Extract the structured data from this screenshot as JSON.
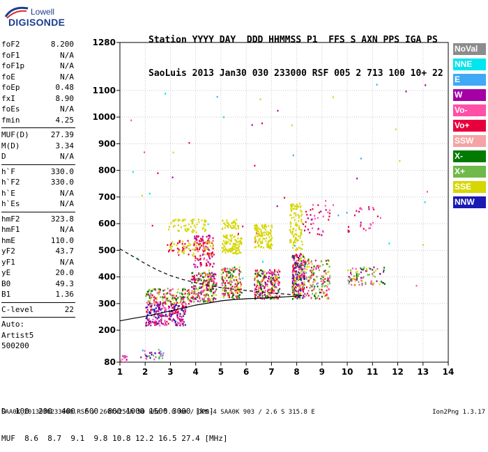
{
  "logo": {
    "line1": "Lowell",
    "line2": "DIGISONDE"
  },
  "header": {
    "row1": "Station YYYY DAY  DDD HHMMSS P1  FFS S AXN PPS IGA PS",
    "row2": "SaoLuis 2013 Jan30 030 233000 RSF 005 2 713 100 10+ 22"
  },
  "params": {
    "group1": [
      {
        "k": "foF2",
        "v": "8.200"
      },
      {
        "k": "foF1",
        "v": "N/A"
      },
      {
        "k": "foF1p",
        "v": "N/A"
      },
      {
        "k": "foE",
        "v": "N/A"
      },
      {
        "k": "foEp",
        "v": "0.48"
      },
      {
        "k": "fxI",
        "v": "8.90"
      },
      {
        "k": "foEs",
        "v": "N/A"
      },
      {
        "k": "fmin",
        "v": "4.25"
      }
    ],
    "group2": [
      {
        "k": "MUF(D)",
        "v": "27.39"
      },
      {
        "k": "M(D)",
        "v": "3.34"
      },
      {
        "k": "D",
        "v": "N/A"
      }
    ],
    "group3": [
      {
        "k": "h`F",
        "v": "330.0"
      },
      {
        "k": "h`F2",
        "v": "330.0"
      },
      {
        "k": "h`E",
        "v": "N/A"
      },
      {
        "k": "h`Es",
        "v": "N/A"
      }
    ],
    "group4": [
      {
        "k": "hmF2",
        "v": "323.8"
      },
      {
        "k": "hmF1",
        "v": "N/A"
      },
      {
        "k": "hmE",
        "v": "110.0"
      },
      {
        "k": "yF2",
        "v": "43.7"
      },
      {
        "k": "yF1",
        "v": "N/A"
      },
      {
        "k": "yE",
        "v": "20.0"
      },
      {
        "k": "B0",
        "v": "49.3"
      },
      {
        "k": "B1",
        "v": "1.36"
      }
    ],
    "clevel": {
      "k": "C-level",
      "v": "22"
    },
    "auto": [
      "Auto:",
      "Artist5",
      "500200"
    ]
  },
  "legend": [
    {
      "label": "NoVal",
      "color": "#8c8c8c"
    },
    {
      "label": "NNE",
      "color": "#00e5ee"
    },
    {
      "label": "E",
      "color": "#3fa9f5"
    },
    {
      "label": "W",
      "color": "#a400a4"
    },
    {
      "label": "Vo-",
      "color": "#ff4fa6"
    },
    {
      "label": "Vo+",
      "color": "#e8003d"
    },
    {
      "label": "SSW",
      "color": "#f5a3a3"
    },
    {
      "label": "X-",
      "color": "#007a00"
    },
    {
      "label": "X+",
      "color": "#6fb84a"
    },
    {
      "label": "SSE",
      "color": "#d6d600"
    },
    {
      "label": "NNW",
      "color": "#1a1ab5"
    }
  ],
  "chart_data": {
    "type": "scatter",
    "xlim": [
      1,
      14
    ],
    "ylim": [
      80,
      1280
    ],
    "xticks": [
      1,
      2,
      3,
      4,
      5,
      6,
      7,
      8,
      9,
      10,
      11,
      12,
      13,
      14
    ],
    "yticks": [
      80,
      200,
      300,
      400,
      500,
      600,
      700,
      800,
      900,
      1000,
      1100,
      1280
    ],
    "grid": true,
    "clusters": [
      {
        "fmin": 1.8,
        "fmax": 2.7,
        "hmin": 90,
        "hmax": 130,
        "n": 35,
        "colors": [
          "#3fa9f5",
          "#a400a4",
          "#6fb84a",
          "#ff4fa6",
          "#1a1ab5"
        ]
      },
      {
        "fmin": 1.0,
        "fmax": 1.3,
        "hmin": 80,
        "hmax": 110,
        "n": 10,
        "colors": [
          "#a400a4",
          "#ff4fa6"
        ]
      },
      {
        "fmin": 2.0,
        "fmax": 3.6,
        "hmin": 220,
        "hmax": 310,
        "n": 260,
        "colors": [
          "#a400a4",
          "#1a1ab5",
          "#ff4fa6",
          "#e8003d"
        ]
      },
      {
        "fmin": 2.0,
        "fmax": 3.8,
        "hmin": 300,
        "hmax": 360,
        "n": 150,
        "colors": [
          "#007a00",
          "#6fb84a",
          "#e8003d",
          "#ff4fa6",
          "#d6d600"
        ]
      },
      {
        "fmin": 3.8,
        "fmax": 4.8,
        "hmin": 310,
        "hmax": 420,
        "n": 240,
        "colors": [
          "#ff4fa6",
          "#a400a4",
          "#e8003d",
          "#d6d600",
          "#007a00",
          "#6fb84a"
        ]
      },
      {
        "fmin": 3.9,
        "fmax": 4.7,
        "hmin": 440,
        "hmax": 560,
        "n": 90,
        "colors": [
          "#a400a4",
          "#ff4fa6",
          "#e8003d"
        ]
      },
      {
        "fmin": 2.8,
        "fmax": 4.7,
        "hmin": 480,
        "hmax": 540,
        "n": 110,
        "colors": [
          "#d6d600",
          "#e8003d"
        ]
      },
      {
        "fmin": 2.9,
        "fmax": 4.4,
        "hmin": 570,
        "hmax": 620,
        "n": 60,
        "colors": [
          "#d6d600"
        ]
      },
      {
        "fmin": 5.0,
        "fmax": 5.8,
        "hmin": 320,
        "hmax": 440,
        "n": 170,
        "colors": [
          "#d6d600",
          "#007a00",
          "#ff4fa6",
          "#6fb84a",
          "#e8003d"
        ]
      },
      {
        "fmin": 5.0,
        "fmax": 5.8,
        "hmin": 490,
        "hmax": 560,
        "n": 110,
        "colors": [
          "#d6d600"
        ]
      },
      {
        "fmin": 5.0,
        "fmax": 5.7,
        "hmin": 580,
        "hmax": 620,
        "n": 40,
        "colors": [
          "#d6d600"
        ]
      },
      {
        "fmin": 6.3,
        "fmax": 7.3,
        "hmin": 320,
        "hmax": 430,
        "n": 240,
        "colors": [
          "#e8003d",
          "#ff4fa6",
          "#007a00",
          "#d6d600",
          "#a400a4"
        ]
      },
      {
        "fmin": 6.3,
        "fmax": 7.0,
        "hmin": 510,
        "hmax": 600,
        "n": 120,
        "colors": [
          "#d6d600"
        ]
      },
      {
        "fmin": 7.8,
        "fmax": 8.3,
        "hmin": 320,
        "hmax": 490,
        "n": 250,
        "colors": [
          "#e8003d",
          "#ff4fa6",
          "#a400a4",
          "#007a00",
          "#d6d600",
          "#1a1ab5"
        ]
      },
      {
        "fmin": 7.7,
        "fmax": 8.2,
        "hmin": 500,
        "hmax": 680,
        "n": 110,
        "colors": [
          "#d6d600"
        ]
      },
      {
        "fmin": 8.3,
        "fmax": 9.3,
        "hmin": 320,
        "hmax": 470,
        "n": 150,
        "colors": [
          "#e8003d",
          "#ff4fa6",
          "#007a00",
          "#d6d600",
          "#6fb84a"
        ]
      },
      {
        "fmin": 8.2,
        "fmax": 9.3,
        "hmin": 560,
        "hmax": 690,
        "n": 40,
        "colors": [
          "#e8003d",
          "#a400a4",
          "#ff4fa6"
        ]
      },
      {
        "fmin": 10.0,
        "fmax": 11.5,
        "hmin": 370,
        "hmax": 440,
        "n": 90,
        "colors": [
          "#6fb84a",
          "#d6d600",
          "#ff4fa6",
          "#a400a4",
          "#007a00"
        ]
      },
      {
        "fmin": 10.0,
        "fmax": 11.3,
        "hmin": 570,
        "hmax": 680,
        "n": 25,
        "colors": [
          "#ff4fa6",
          "#e8003d",
          "#a400a4"
        ]
      },
      {
        "fmin": 1.2,
        "fmax": 13.5,
        "hmin": 350,
        "hmax": 1150,
        "n": 55,
        "colors": [
          "#a400a4",
          "#e8003d",
          "#ff4fa6",
          "#00e5ee",
          "#d6d600",
          "#3fa9f5"
        ]
      }
    ],
    "trace_solid": {
      "x": [
        1,
        1.5,
        2,
        2.5,
        3,
        3.5,
        4,
        4.5,
        5,
        5.5,
        6,
        6.5,
        7,
        7.5,
        8,
        8.2
      ],
      "y": [
        235,
        244,
        252,
        262,
        272,
        283,
        294,
        302,
        310,
        315,
        318,
        320,
        322,
        325,
        328,
        330
      ]
    },
    "trace_dashed": {
      "x": [
        1,
        1.5,
        2,
        2.5,
        3,
        3.5,
        4,
        4.5,
        5,
        5.5,
        6,
        6.5,
        7,
        7.5,
        8,
        8.2
      ],
      "y": [
        505,
        478,
        450,
        425,
        405,
        390,
        378,
        368,
        360,
        354,
        349,
        344,
        340,
        336,
        332,
        330
      ]
    }
  },
  "footer": {
    "row_d_label": "D",
    "row_d_values": "  100  200  400  600  800 1000 1500 3000 [km]",
    "row_muf_label": "MUF",
    "row_muf_values": "  8.6  8.7  9.1  9.8 10.8 12.2 16.5 27.4 [MHz]",
    "file_info": "SAA0K_2013030233000.RSF / 260fx256h 50 kHz 5.0 km / DPS-4 SAA0K 903 / 2.6 S 315.8 E",
    "version": "Ion2Png 1.3.17"
  }
}
